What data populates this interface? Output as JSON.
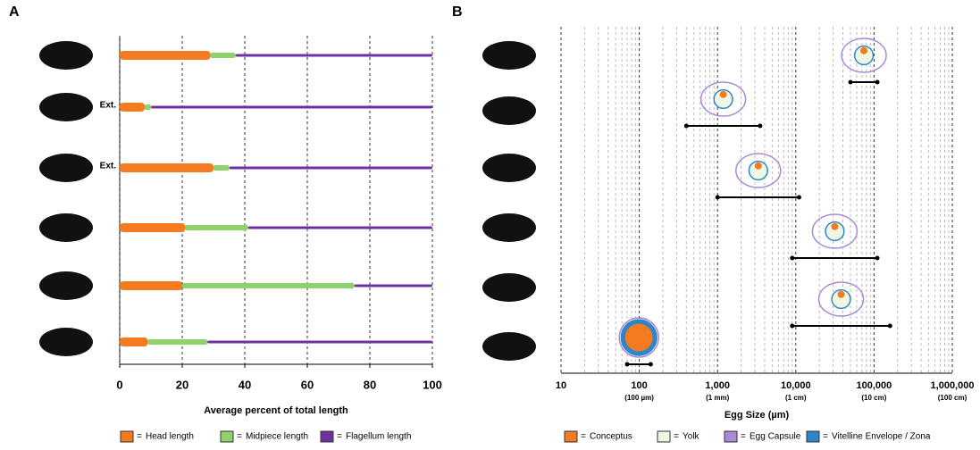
{
  "chart_data": [
    {
      "type": "stacked-bar-horizontal",
      "panel_label": "A",
      "categories": [
        null,
        null,
        null,
        null,
        null,
        null
      ],
      "category_notes": [
        null,
        "Ext.",
        "Ext.",
        null,
        null,
        null
      ],
      "series": [
        {
          "name": "Head length",
          "color": "#f47b20",
          "values": [
            29,
            8,
            30,
            21,
            20,
            9
          ]
        },
        {
          "name": "Midpiece length",
          "color": "#8fd16a",
          "values": [
            8,
            2,
            5,
            20,
            55,
            19
          ]
        },
        {
          "name": "Flagellum length",
          "color": "#7030a0",
          "values": [
            63,
            90,
            65,
            59,
            25,
            72
          ]
        }
      ],
      "legend_separator": "=",
      "xlim": [
        0,
        100
      ],
      "xticks": [
        0,
        20,
        40,
        60,
        80,
        100
      ],
      "grid": true,
      "xlabel": "Average percent of total length"
    },
    {
      "type": "range",
      "panel_label": "B",
      "categories": [
        null,
        null,
        null,
        null,
        null,
        null
      ],
      "series": [
        {
          "color": "#000000",
          "low": [
            50000,
            400,
            1000,
            9000,
            9000,
            70
          ],
          "high": [
            110000,
            3500,
            11000,
            110000,
            160000,
            140
          ]
        }
      ],
      "xscale": "log",
      "xlim": [
        10,
        1000000
      ],
      "xticks": [
        10,
        100,
        {
          "value": 1000,
          "label": "1,000"
        },
        {
          "value": 10000,
          "label": "10,000"
        },
        {
          "value": 100000,
          "label": "100,000"
        },
        {
          "value": 1000000,
          "label": "1,000,000"
        }
      ],
      "xtick_sublabels": [
        null,
        "(100 µm)",
        "(1 mm)",
        "(1 cm)",
        "(10 cm)",
        "(100 cm)"
      ],
      "grid": true,
      "minor_grid": true,
      "xlabel": "Egg Size (µm)",
      "legend_separator": "=",
      "legend": [
        {
          "name": "Conceptus",
          "color": "#f47b20"
        },
        {
          "name": "Yolk",
          "color": "#eef7e4"
        },
        {
          "name": "Egg Capsule",
          "color": "#a98ad6"
        },
        {
          "name": "Vitelline Envelope / Zona",
          "color": "#2e86c8"
        }
      ]
    }
  ]
}
